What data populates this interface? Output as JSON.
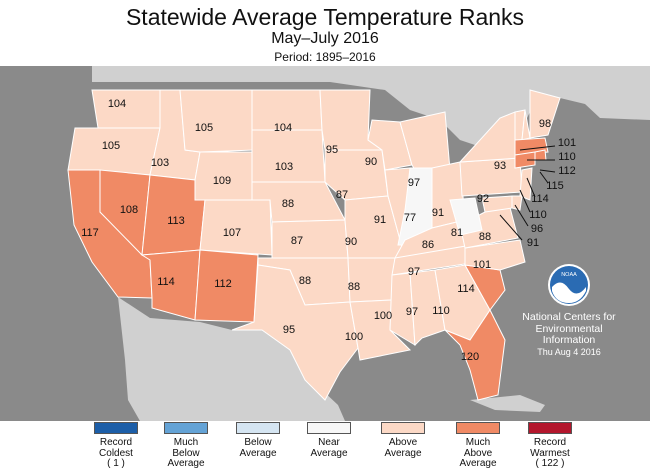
{
  "header": {
    "title": "Statewide Average Temperature Ranks",
    "subtitle": "May–July 2016",
    "period": "Period: 1895–2016"
  },
  "colors": {
    "record_coldest": "#1c5ea8",
    "much_below": "#64a3d6",
    "below": "#d5e5f2",
    "near": "#f7f7f7",
    "above": "#fcd9c6",
    "much_above": "#f08a65",
    "record_warmest": "#b3162c",
    "ocean": "#8a8a8a",
    "state_border": "#ffffff"
  },
  "rank_categories": {
    "much_above": [
      "CA",
      "NV",
      "UT",
      "AZ",
      "NM",
      "SC",
      "FL",
      "MA",
      "CT",
      "RI"
    ],
    "near": [
      "IN",
      "WV"
    ]
  },
  "state_ranks": [
    {
      "state": "WA",
      "rank": "104"
    },
    {
      "state": "OR",
      "rank": "105"
    },
    {
      "state": "CA",
      "rank": "117"
    },
    {
      "state": "NV",
      "rank": "108"
    },
    {
      "state": "ID",
      "rank": "103"
    },
    {
      "state": "MT",
      "rank": "105"
    },
    {
      "state": "WY",
      "rank": "109"
    },
    {
      "state": "UT",
      "rank": "113"
    },
    {
      "state": "CO",
      "rank": "107"
    },
    {
      "state": "AZ",
      "rank": "114"
    },
    {
      "state": "NM",
      "rank": "112"
    },
    {
      "state": "ND",
      "rank": "104"
    },
    {
      "state": "SD",
      "rank": "103"
    },
    {
      "state": "NE",
      "rank": "88"
    },
    {
      "state": "KS",
      "rank": "87"
    },
    {
      "state": "OK",
      "rank": "88"
    },
    {
      "state": "TX",
      "rank": "95"
    },
    {
      "state": "MN",
      "rank": "95"
    },
    {
      "state": "IA",
      "rank": "87"
    },
    {
      "state": "MO",
      "rank": "90"
    },
    {
      "state": "AR",
      "rank": "88"
    },
    {
      "state": "LA",
      "rank": "100"
    },
    {
      "state": "WI",
      "rank": "90"
    },
    {
      "state": "IL",
      "rank": "91"
    },
    {
      "state": "MI",
      "rank": "97"
    },
    {
      "state": "IN",
      "rank": "77"
    },
    {
      "state": "OH",
      "rank": "91"
    },
    {
      "state": "KY",
      "rank": "86"
    },
    {
      "state": "TN",
      "rank": "97"
    },
    {
      "state": "MS",
      "rank": "100"
    },
    {
      "state": "AL",
      "rank": "97"
    },
    {
      "state": "GA",
      "rank": "110"
    },
    {
      "state": "FL",
      "rank": "120"
    },
    {
      "state": "SC",
      "rank": "114"
    },
    {
      "state": "NC",
      "rank": "101"
    },
    {
      "state": "VA",
      "rank": "88"
    },
    {
      "state": "WV",
      "rank": "81"
    },
    {
      "state": "PA",
      "rank": "92"
    },
    {
      "state": "NY",
      "rank": "93"
    },
    {
      "state": "ME",
      "rank": "98"
    },
    {
      "state": "VT",
      "rank": "101"
    },
    {
      "state": "NH",
      "rank": "110"
    },
    {
      "state": "MA",
      "rank": "112"
    },
    {
      "state": "RI",
      "rank": "115"
    },
    {
      "state": "CT",
      "rank": "114"
    },
    {
      "state": "NJ",
      "rank": "110"
    },
    {
      "state": "DE",
      "rank": "96"
    },
    {
      "state": "MD",
      "rank": "91"
    }
  ],
  "org": {
    "logo_text": "NOAA",
    "line1": "National Centers for",
    "line2": "Environmental",
    "line3": "Information",
    "date": "Thu Aug  4 2016"
  },
  "legend": [
    {
      "lines": [
        "Record",
        "Coldest",
        "( 1 )"
      ],
      "color": "#1c5ea8"
    },
    {
      "lines": [
        "Much",
        "Below",
        "Average"
      ],
      "color": "#64a3d6"
    },
    {
      "lines": [
        "Below",
        "Average"
      ],
      "color": "#d5e5f2"
    },
    {
      "lines": [
        "Near",
        "Average"
      ],
      "color": "#f7f7f7"
    },
    {
      "lines": [
        "Above",
        "Average"
      ],
      "color": "#fcd9c6"
    },
    {
      "lines": [
        "Much",
        "Above",
        "Average"
      ],
      "color": "#f08a65"
    },
    {
      "lines": [
        "Record",
        "Warmest",
        "( 122 )"
      ],
      "color": "#b3162c"
    }
  ]
}
